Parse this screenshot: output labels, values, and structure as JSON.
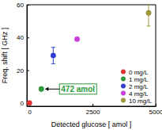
{
  "chart_data": {
    "type": "scatter",
    "x_label": "Detected glucose [ amol ]",
    "y_label": "Freq. shift [ GHz ]",
    "xlim": [
      -100,
      5000
    ],
    "xticks": [
      0,
      2500,
      5000
    ],
    "ylim": [
      -2,
      60
    ],
    "yticks": [
      0,
      20,
      40,
      60
    ],
    "grid": false,
    "legend": "lower right",
    "marker": "circle",
    "series": [
      {
        "name": "0 mg/L",
        "color": "#e8322e",
        "x": [
          0
        ],
        "values": [
          0
        ],
        "error": [
          0.5
        ]
      },
      {
        "name": "1 mg/L",
        "color": "#2e9a3a",
        "x": [
          472
        ],
        "values": [
          8.5
        ],
        "error": [
          1
        ]
      },
      {
        "name": "2 mg/L",
        "color": "#2f3fd6",
        "x": [
          944
        ],
        "values": [
          29
        ],
        "error": [
          5
        ]
      },
      {
        "name": "4 mg/L",
        "color": "#d23fe0",
        "x": [
          1888
        ],
        "values": [
          39
        ],
        "error": [
          1
        ]
      },
      {
        "name": "10 mg/L",
        "color": "#a09a3a",
        "x": [
          4720
        ],
        "values": [
          55
        ],
        "error": [
          8
        ]
      }
    ],
    "annotations": [
      {
        "text": "472 amol",
        "x": 472,
        "y": 8.5,
        "color": "#2e9a3a"
      }
    ]
  }
}
